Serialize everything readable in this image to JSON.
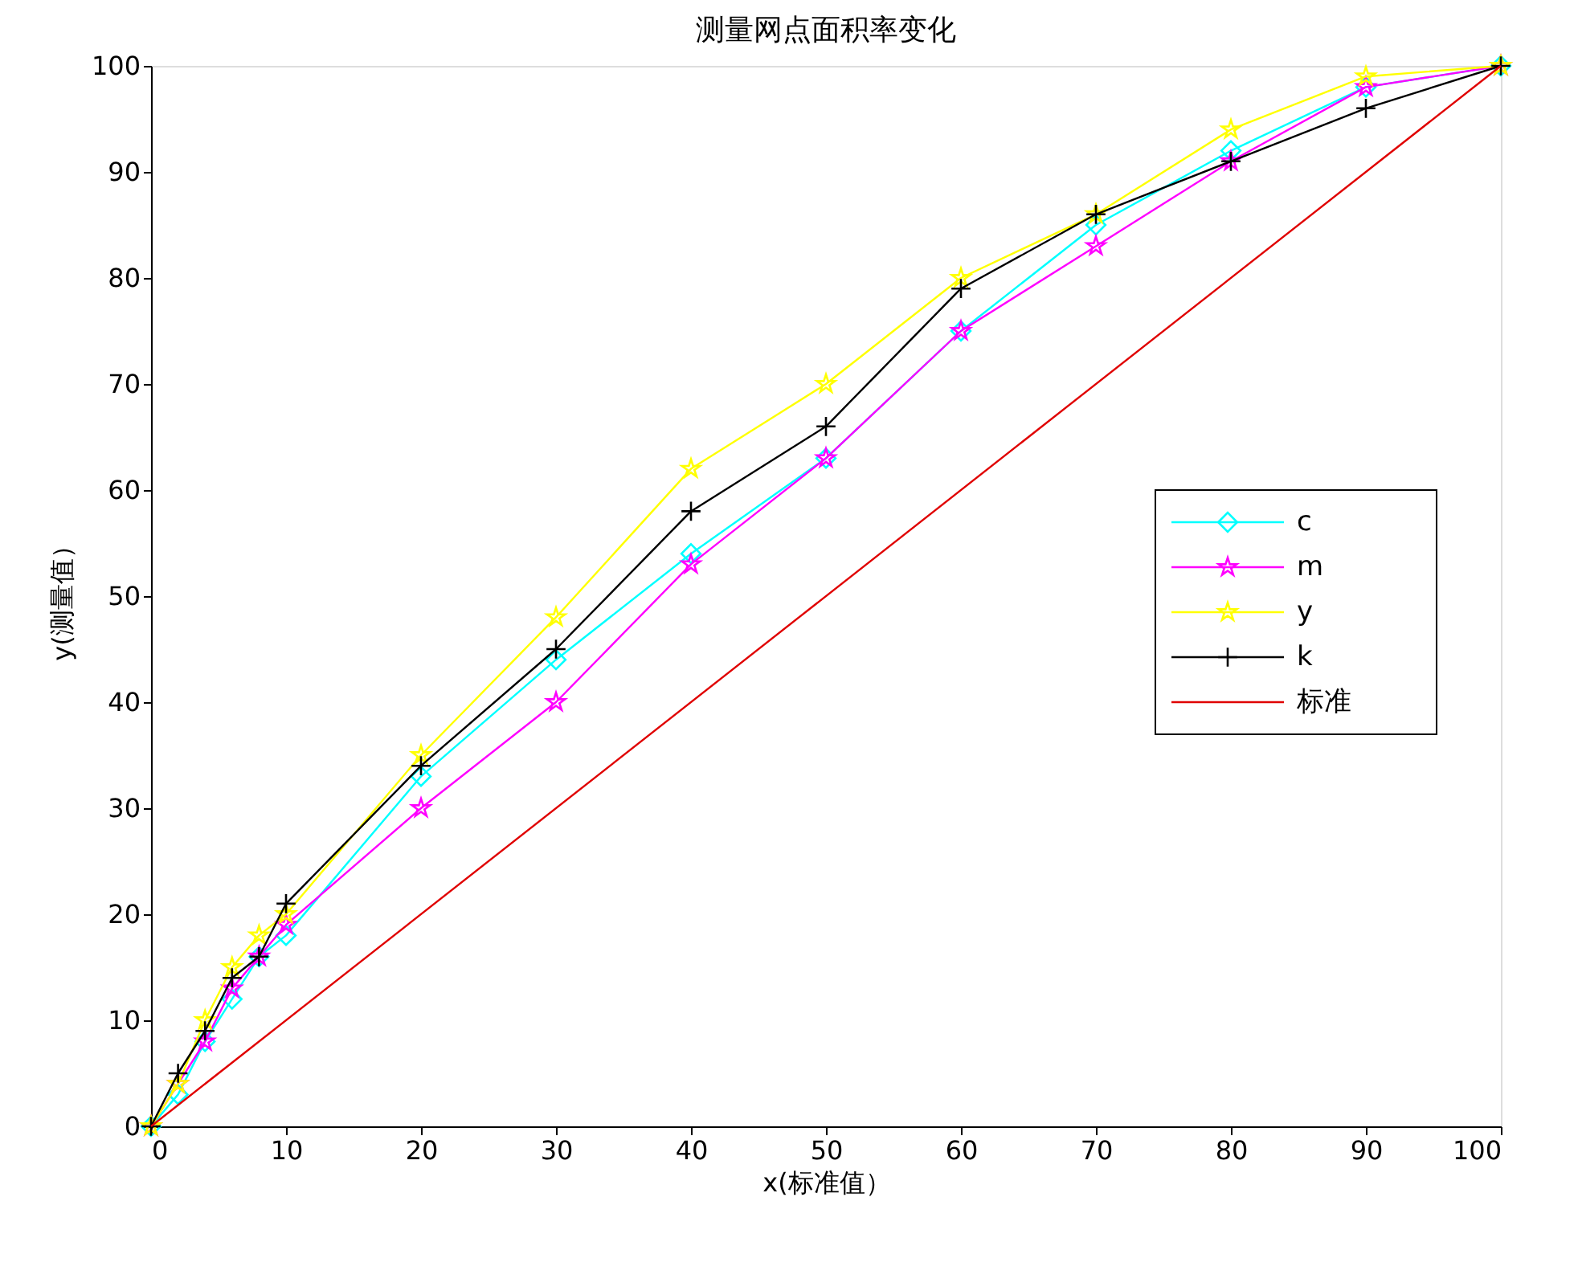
{
  "chart_data": {
    "type": "line",
    "title": "测量网点面积率变化",
    "xlabel": "x(标准值）",
    "ylabel": "y(测量值）",
    "x": [
      0,
      2,
      4,
      6,
      8,
      10,
      20,
      30,
      40,
      50,
      60,
      70,
      80,
      90,
      100
    ],
    "series": [
      {
        "name": "c",
        "color": "#00ffff",
        "marker": "diamond",
        "values": [
          0,
          3,
          8,
          12,
          16,
          18,
          33,
          44,
          54,
          63,
          75,
          85,
          92,
          98,
          100
        ]
      },
      {
        "name": "m",
        "color": "#ff00ff",
        "marker": "star",
        "values": [
          0,
          4,
          8,
          13,
          16,
          19,
          30,
          40,
          53,
          63,
          75,
          83,
          91,
          98,
          100
        ]
      },
      {
        "name": "y",
        "color": "#ffff00",
        "marker": "star",
        "values": [
          0,
          4,
          10,
          15,
          18,
          20,
          35,
          48,
          62,
          70,
          80,
          86,
          94,
          99,
          100
        ]
      },
      {
        "name": "k",
        "color": "#000000",
        "marker": "cross",
        "values": [
          0,
          5,
          9,
          14,
          16,
          21,
          34,
          45,
          58,
          66,
          79,
          86,
          91,
          96,
          100
        ]
      },
      {
        "name": "标准",
        "color": "#e00000",
        "marker": "none",
        "x": [
          0,
          100
        ],
        "values": [
          0,
          100
        ]
      }
    ],
    "xlim": [
      0,
      100
    ],
    "xticks": [
      0,
      10,
      20,
      30,
      40,
      50,
      60,
      70,
      80,
      90,
      100
    ],
    "ylim": [
      0,
      100
    ],
    "yticks": [
      0,
      10,
      20,
      30,
      40,
      50,
      60,
      70,
      80,
      90,
      100
    ],
    "grid": false,
    "legend": "right",
    "line_style": "solid"
  }
}
